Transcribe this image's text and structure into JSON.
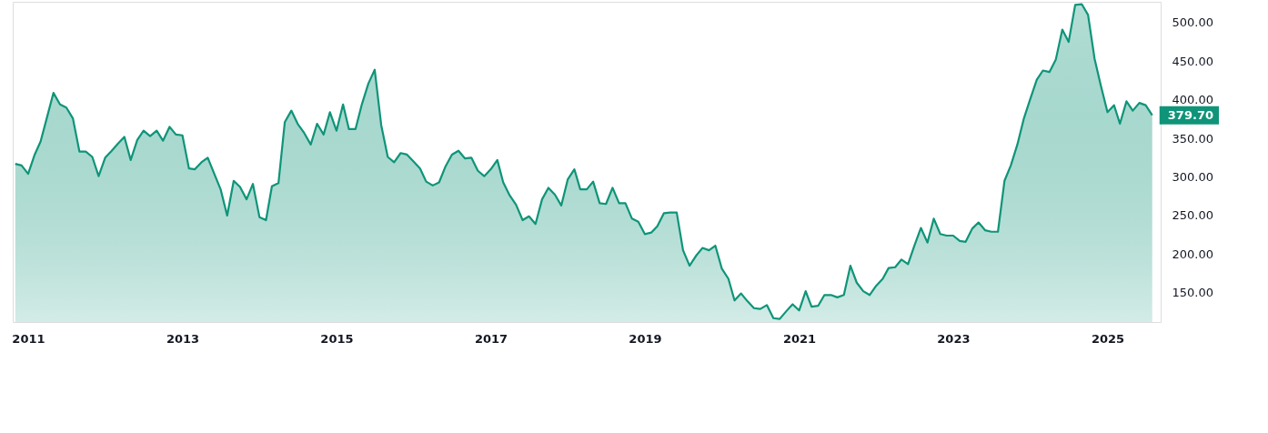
{
  "chart_data": {
    "type": "area",
    "x": [
      "2010-11",
      "2010-12",
      "2011-01",
      "2011-02",
      "2011-03",
      "2011-04",
      "2011-05",
      "2011-06",
      "2011-07",
      "2011-08",
      "2011-09",
      "2011-10",
      "2011-11",
      "2011-12",
      "2012-01",
      "2012-02",
      "2012-03",
      "2012-04",
      "2012-05",
      "2012-06",
      "2012-07",
      "2012-08",
      "2012-09",
      "2012-10",
      "2012-11",
      "2012-12",
      "2013-01",
      "2013-02",
      "2013-03",
      "2013-04",
      "2013-05",
      "2013-06",
      "2013-07",
      "2013-08",
      "2013-09",
      "2013-10",
      "2013-11",
      "2013-12",
      "2014-01",
      "2014-02",
      "2014-03",
      "2014-04",
      "2014-05",
      "2014-06",
      "2014-07",
      "2014-08",
      "2014-09",
      "2014-10",
      "2014-11",
      "2014-12",
      "2015-01",
      "2015-02",
      "2015-03",
      "2015-04",
      "2015-05",
      "2015-06",
      "2015-07",
      "2015-08",
      "2015-09",
      "2015-10",
      "2015-11",
      "2015-12",
      "2016-01",
      "2016-02",
      "2016-03",
      "2016-04",
      "2016-05",
      "2016-06",
      "2016-07",
      "2016-08",
      "2016-09",
      "2016-10",
      "2016-11",
      "2016-12",
      "2017-01",
      "2017-02",
      "2017-03",
      "2017-04",
      "2017-05",
      "2017-06",
      "2017-07",
      "2017-08",
      "2017-09",
      "2017-10",
      "2017-11",
      "2017-12",
      "2018-01",
      "2018-02",
      "2018-03",
      "2018-04",
      "2018-05",
      "2018-06",
      "2018-07",
      "2018-08",
      "2018-09",
      "2018-10",
      "2018-11",
      "2018-12",
      "2019-01",
      "2019-02",
      "2019-03",
      "2019-04",
      "2019-05",
      "2019-06",
      "2019-07",
      "2019-08",
      "2019-09",
      "2019-10",
      "2019-11",
      "2019-12",
      "2020-01",
      "2020-02",
      "2020-03",
      "2020-04",
      "2020-05",
      "2020-06",
      "2020-07",
      "2020-08",
      "2020-09",
      "2020-10",
      "2020-11",
      "2020-12",
      "2021-01",
      "2021-02",
      "2021-03",
      "2021-04",
      "2021-05",
      "2021-06",
      "2021-07",
      "2021-08",
      "2021-09",
      "2021-10",
      "2021-11",
      "2021-12",
      "2022-01",
      "2022-02",
      "2022-03",
      "2022-04",
      "2022-05",
      "2022-06",
      "2022-07",
      "2022-08",
      "2022-09",
      "2022-10",
      "2022-11",
      "2022-12",
      "2023-01",
      "2023-02",
      "2023-03",
      "2023-04",
      "2023-05",
      "2023-06",
      "2023-07",
      "2023-08",
      "2023-09",
      "2023-10",
      "2023-11",
      "2023-12",
      "2024-01",
      "2024-02",
      "2024-03",
      "2024-04",
      "2024-05",
      "2024-06",
      "2024-07",
      "2024-08",
      "2024-09",
      "2024-10",
      "2024-11",
      "2024-12",
      "2025-01",
      "2025-02",
      "2025-03",
      "2025-04",
      "2025-05",
      "2025-06",
      "2025-07",
      "2025-08"
    ],
    "series": [
      {
        "color": "#0f9479",
        "values": [
          317,
          315,
          304,
          329,
          346,
          378,
          409,
          394,
          390,
          376,
          333,
          333,
          326,
          301,
          325,
          334,
          343,
          352,
          322,
          348,
          360,
          353,
          360,
          347,
          365,
          355,
          354,
          311,
          310,
          319,
          325,
          304,
          284,
          250,
          295,
          287,
          271,
          291,
          248,
          244,
          288,
          292,
          371,
          386,
          369,
          357,
          342,
          369,
          355,
          384,
          360,
          394,
          362,
          362,
          394,
          421,
          439,
          367,
          326,
          319,
          331,
          329,
          320,
          311,
          294,
          289,
          293,
          314,
          329,
          334,
          324,
          325,
          308,
          301,
          310,
          322,
          293,
          276,
          264,
          244,
          249,
          239,
          271,
          286,
          277,
          263,
          297,
          310,
          284,
          284,
          294,
          266,
          265,
          286,
          266,
          266,
          246,
          242,
          226,
          228,
          236,
          253,
          254,
          254,
          205,
          185,
          198,
          208,
          205,
          211,
          181,
          168,
          140,
          149,
          139,
          130,
          129,
          134,
          117,
          116,
          126,
          135,
          127,
          152,
          132,
          133,
          147,
          147,
          144,
          147,
          185,
          163,
          152,
          147,
          159,
          168,
          182,
          183,
          193,
          187,
          211,
          234,
          215,
          246,
          226,
          224,
          224,
          217,
          216,
          233,
          241,
          231,
          229,
          229,
          295,
          315,
          342,
          375,
          401,
          426,
          438,
          436,
          452,
          491,
          475,
          523,
          524,
          510,
          453,
          418,
          384,
          393,
          369,
          398,
          386,
          396,
          393,
          380
        ]
      }
    ],
    "xlim": [
      "2010-10-20",
      "2025-09-10"
    ],
    "xticks": [
      "2011",
      "2013",
      "2015",
      "2017",
      "2019",
      "2021",
      "2023",
      "2025"
    ],
    "ylim": [
      112,
      527
    ],
    "yticks": [
      {
        "value": 150,
        "label": "150.00"
      },
      {
        "value": 200,
        "label": "200.00"
      },
      {
        "value": 250,
        "label": "250.00"
      },
      {
        "value": 300,
        "label": "300.00"
      },
      {
        "value": 350,
        "label": "350.00"
      },
      {
        "value": 400,
        "label": "400.00"
      },
      {
        "value": 450,
        "label": "450.00"
      },
      {
        "value": 500,
        "label": "500.00"
      }
    ],
    "annotations": [
      {
        "text": "379.70",
        "x": "2025-08",
        "y": 380
      }
    ],
    "grid": false
  }
}
